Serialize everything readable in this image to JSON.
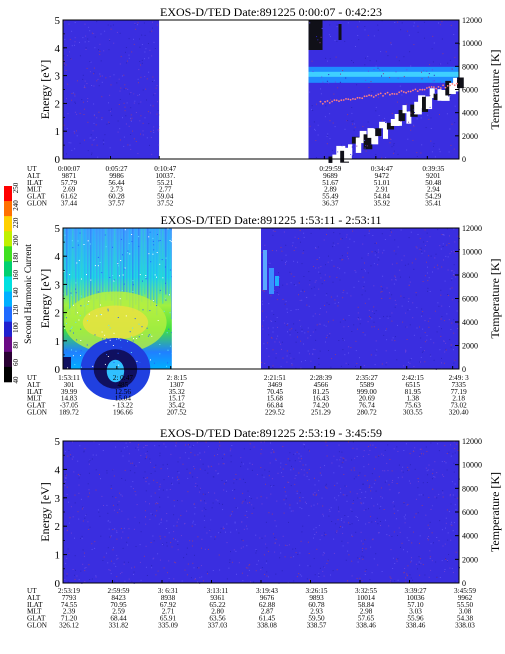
{
  "chart_data": [
    {
      "type": "heatmap",
      "title": "EXOS-D/TED   Date:891225   0:00:07 - 0:42:23",
      "ylabel": "Energy [eV]",
      "ylabel_right": "Temperature [K]",
      "ylim": [
        0,
        5
      ],
      "yticks": [
        0,
        1,
        2,
        3,
        4,
        5
      ],
      "ylim_right": [
        0,
        12000
      ],
      "yticks_right": [
        0,
        2000,
        4000,
        6000,
        8000,
        10000,
        12000
      ],
      "grid": false,
      "blocks": [
        {
          "t_start": 0,
          "t_end": 0.243,
          "field": "uniform-blue"
        },
        {
          "t_start": 0.243,
          "t_end": 0.62,
          "field": "data-gap"
        },
        {
          "t_start": 0.62,
          "t_end": 1.0,
          "field": "structured"
        }
      ],
      "table": {
        "row_labels": [
          "UT",
          "ALT",
          "ILAT",
          "MLT",
          "GLAT",
          "GLON"
        ],
        "columns": [
          {
            "pos": 0.0,
            "values": [
              "0:00:07",
              "9871",
              "57.79",
              "2.69",
              "61.62",
              "37.44"
            ]
          },
          {
            "pos": 0.12,
            "values": [
              "0:05:27",
              "9986",
              "56.44",
              "2.73",
              "60.28",
              "37.57"
            ]
          },
          {
            "pos": 0.243,
            "values": [
              "0:10:47",
              "10037.",
              "55.21",
              "2.77",
              "59.04",
              "37.52"
            ]
          },
          {
            "pos": 0.66,
            "values": [
              "0:29:59",
              "9689",
              "51.67",
              "2.89",
              "55.49",
              "36.37"
            ]
          },
          {
            "pos": 0.79,
            "values": [
              "0:34:47",
              "9472",
              "51.01",
              "2.91",
              "54.84",
              "35.92"
            ]
          },
          {
            "pos": 0.92,
            "values": [
              "0:39:35",
              "9201",
              "50.48",
              "2.94",
              "54.29",
              "35.41"
            ]
          }
        ]
      }
    },
    {
      "type": "heatmap",
      "title": "EXOS-D/TED   Date:891225   1:53:11 - 2:53:11",
      "ylabel": "Energy [eV]",
      "ylabel_right": "Temperature [K]",
      "ylim": [
        0,
        5
      ],
      "yticks": [
        0,
        1,
        2,
        3,
        4,
        5
      ],
      "ylim_right": [
        0,
        12000
      ],
      "yticks_right": [
        0,
        2000,
        4000,
        6000,
        8000,
        10000,
        12000
      ],
      "grid": false,
      "blocks": [
        {
          "t_start": 0,
          "t_end": 0.275,
          "field": "harmonic"
        },
        {
          "t_start": 0.275,
          "t_end": 0.5,
          "field": "data-gap"
        },
        {
          "t_start": 0.5,
          "t_end": 1.0,
          "field": "uniform-blue"
        }
      ],
      "colorbar": {
        "label": "Second Harmonic Current",
        "ticks": [
          "40",
          "60",
          "80",
          "100",
          "120",
          "140",
          "160",
          "180",
          "200",
          "220",
          "240",
          "250"
        ],
        "colors": [
          "#000000",
          "#2a0033",
          "#6a0a84",
          "#2020d0",
          "#1f6aff",
          "#00b0ff",
          "#00e0e0",
          "#00d070",
          "#40e020",
          "#c0f000",
          "#ffd000",
          "#ff7000",
          "#ff0000"
        ]
      },
      "table": {
        "row_labels": [
          "UT",
          "ALT",
          "ILAT",
          "MLT",
          "GLAT",
          "GLON"
        ],
        "columns": [
          {
            "pos": 0.0,
            "values": [
              "1:53:11",
              "301",
              "39.99",
              "14.83",
              "-37.05",
              "189.72"
            ]
          },
          {
            "pos": 0.136,
            "values": [
              "2: 0:47",
              "485",
              "12.56",
              "15.04",
              "- 13.22",
              "196.66"
            ]
          },
          {
            "pos": 0.272,
            "values": [
              "2: 8:15",
              "1307",
              "35.32",
              "15.17",
              "35.42",
              "207.52"
            ]
          },
          {
            "pos": 0.52,
            "values": [
              "2:21:51",
              "3469",
              "70.45",
              "15.68",
              "66.84",
              "229.52"
            ]
          },
          {
            "pos": 0.636,
            "values": [
              "2:28:39",
              "4566",
              "81.25",
              "16.43",
              "74.20",
              "251.29"
            ]
          },
          {
            "pos": 0.752,
            "values": [
              "2:35:27",
              "5589",
              "999.00",
              "20.69",
              "76.74",
              "280.72"
            ]
          },
          {
            "pos": 0.868,
            "values": [
              "2:42:15",
              "6515",
              "81.95",
              "1.38",
              "75.63",
              "303.55"
            ]
          },
          {
            "pos": 0.984,
            "values": [
              "2:49: 3",
              "7335",
              "77.19",
              "2.18",
              "73.02",
              "320.40"
            ]
          }
        ]
      }
    },
    {
      "type": "heatmap",
      "title": "EXOS-D/TED   Date:891225   2:53:19 - 3:45:59",
      "ylabel": "Energy [eV]",
      "ylabel_right": "Temperature [K]",
      "ylim": [
        0,
        5
      ],
      "yticks": [
        0,
        1,
        2,
        3,
        4,
        5
      ],
      "ylim_right": [
        0,
        12000
      ],
      "yticks_right": [
        0,
        2000,
        4000,
        6000,
        8000,
        10000,
        12000
      ],
      "grid": false,
      "blocks": [
        {
          "t_start": 0,
          "t_end": 1.0,
          "field": "uniform-blue"
        }
      ],
      "table": {
        "row_labels": [
          "UT",
          "ALT",
          "ILAT",
          "MLT",
          "GLAT",
          "GLON"
        ],
        "columns": [
          {
            "pos": 0.0,
            "values": [
              "2:53:19",
              "7793",
              "74.55",
              "2.39",
              "71.20",
              "326.12"
            ]
          },
          {
            "pos": 0.125,
            "values": [
              "2:59:59",
              "8423",
              "70.95",
              "2.59",
              "68.44",
              "331.82"
            ]
          },
          {
            "pos": 0.25,
            "values": [
              "3: 6:31",
              "8938",
              "67.92",
              "2.71",
              "65.91",
              "335.09"
            ]
          },
          {
            "pos": 0.375,
            "values": [
              "3:13:11",
              "9361",
              "65.22",
              "2.80",
              "63.56",
              "337.03"
            ]
          },
          {
            "pos": 0.5,
            "values": [
              "3:19:43",
              "9676",
              "62.88",
              "2.87",
              "61.45",
              "338.08"
            ]
          },
          {
            "pos": 0.625,
            "values": [
              "3:26:15",
              "9893",
              "60.78",
              "2.93",
              "59.50",
              "338.57"
            ]
          },
          {
            "pos": 0.75,
            "values": [
              "3:32:55",
              "10014",
              "58.84",
              "2.98",
              "57.65",
              "338.46"
            ]
          },
          {
            "pos": 0.875,
            "values": [
              "3:39:27",
              "10036",
              "57.10",
              "3.03",
              "55.96",
              "338.46"
            ]
          },
          {
            "pos": 1.0,
            "values": [
              "3:45:59",
              "9962",
              "55.50",
              "3.08",
              "54.38",
              "338.03"
            ]
          }
        ]
      }
    }
  ]
}
